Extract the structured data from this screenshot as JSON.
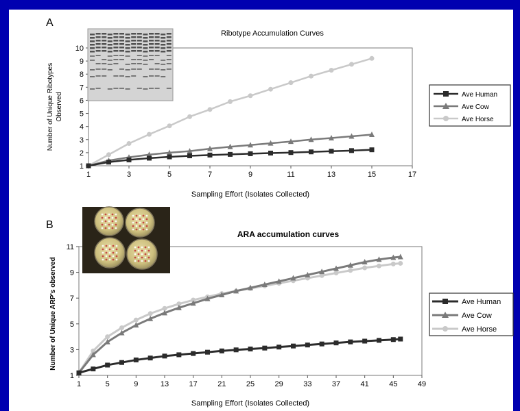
{
  "colors": {
    "human": "#2b2b2b",
    "cow": "#7a7a7a",
    "horse": "#c9c9c9",
    "slide_bg": "#0000b0"
  },
  "chart_data": [
    {
      "panel_label": "A",
      "type": "line",
      "title": "Ribotype Accumulation Curves",
      "xlabel": "Sampling Effort (Isolates Collected)",
      "ylabel_lines": [
        "Number of Unique Ribotypes",
        "Observed"
      ],
      "xlim": [
        1,
        17
      ],
      "ylim": [
        1,
        10
      ],
      "xticks": [
        1,
        3,
        5,
        7,
        9,
        11,
        13,
        15,
        17
      ],
      "yticks": [
        1,
        2,
        3,
        4,
        5,
        6,
        7,
        8,
        9,
        10
      ],
      "x": [
        1,
        2,
        3,
        4,
        5,
        6,
        7,
        8,
        9,
        10,
        11,
        12,
        13,
        14,
        15
      ],
      "series": [
        {
          "name": "Ave Human",
          "color_key": "human",
          "marker": "square",
          "values": [
            1.0,
            1.28,
            1.45,
            1.58,
            1.68,
            1.76,
            1.82,
            1.87,
            1.92,
            1.97,
            2.01,
            2.06,
            2.11,
            2.16,
            2.22
          ]
        },
        {
          "name": "Ave Cow",
          "color_key": "cow",
          "marker": "triangle",
          "values": [
            1.0,
            1.4,
            1.65,
            1.85,
            2.0,
            2.12,
            2.3,
            2.45,
            2.58,
            2.72,
            2.85,
            3.0,
            3.12,
            3.25,
            3.38
          ]
        },
        {
          "name": "Ave Horse",
          "color_key": "horse",
          "marker": "circle",
          "values": [
            1.0,
            1.85,
            2.7,
            3.4,
            4.05,
            4.75,
            5.3,
            5.9,
            6.35,
            6.85,
            7.35,
            7.85,
            8.3,
            8.75,
            9.2
          ]
        }
      ],
      "legend_position": "right"
    },
    {
      "panel_label": "B",
      "type": "line",
      "title": "ARA accumulation curves",
      "xlabel": "Sampling Effort (Isolates Collected)",
      "ylabel_lines": [
        "Number of Unique ARP's observed"
      ],
      "xlim": [
        1,
        49
      ],
      "ylim": [
        1,
        11
      ],
      "xticks": [
        1,
        5,
        9,
        13,
        17,
        21,
        25,
        29,
        33,
        37,
        41,
        45,
        49
      ],
      "yticks": [
        1,
        3,
        5,
        7,
        9,
        11
      ],
      "x": [
        1,
        3,
        5,
        7,
        9,
        11,
        13,
        15,
        17,
        19,
        21,
        23,
        25,
        27,
        29,
        31,
        33,
        35,
        37,
        39,
        41,
        43,
        45,
        46
      ],
      "series": [
        {
          "name": "Ave Human",
          "color_key": "human",
          "marker": "square",
          "values": [
            1.2,
            1.5,
            1.8,
            2.0,
            2.2,
            2.35,
            2.5,
            2.6,
            2.7,
            2.8,
            2.9,
            2.98,
            3.05,
            3.12,
            3.2,
            3.28,
            3.36,
            3.44,
            3.52,
            3.6,
            3.66,
            3.72,
            3.78,
            3.82
          ]
        },
        {
          "name": "Ave Cow",
          "color_key": "cow",
          "marker": "triangle",
          "values": [
            1.2,
            2.6,
            3.6,
            4.3,
            4.9,
            5.4,
            5.85,
            6.25,
            6.6,
            6.95,
            7.25,
            7.55,
            7.8,
            8.05,
            8.3,
            8.55,
            8.8,
            9.05,
            9.3,
            9.55,
            9.8,
            10.0,
            10.15,
            10.2
          ]
        },
        {
          "name": "Ave Horse",
          "color_key": "horse",
          "marker": "circle",
          "values": [
            1.2,
            2.9,
            4.0,
            4.7,
            5.3,
            5.8,
            6.2,
            6.55,
            6.85,
            7.1,
            7.35,
            7.55,
            7.75,
            7.95,
            8.15,
            8.35,
            8.55,
            8.75,
            8.95,
            9.15,
            9.35,
            9.5,
            9.65,
            9.7
          ]
        }
      ],
      "legend_position": "right"
    }
  ]
}
